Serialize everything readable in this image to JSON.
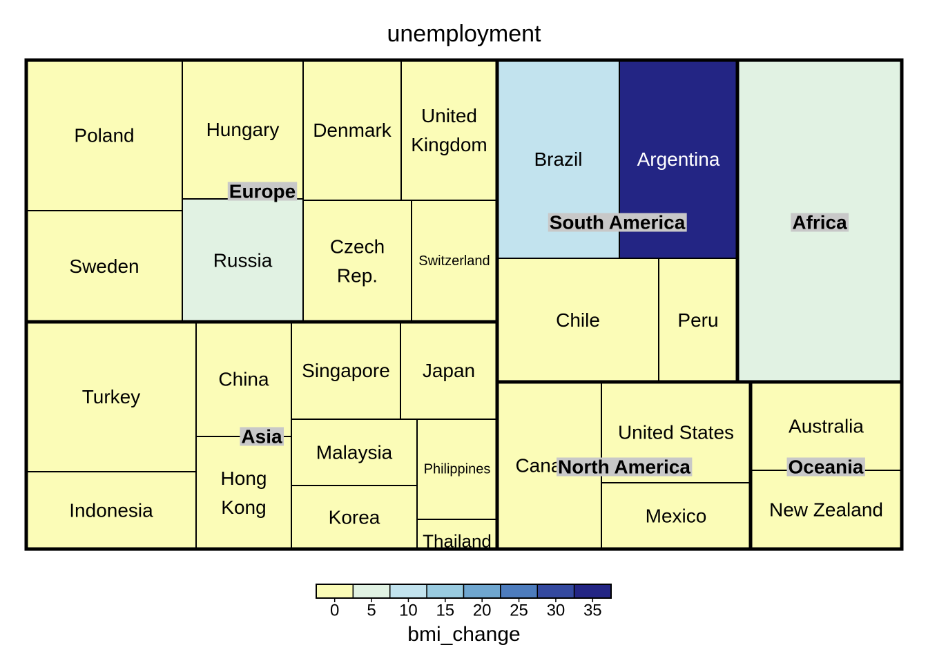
{
  "chart_data": {
    "type": "treemap",
    "title": "unemployment",
    "value_label": "bmi_change",
    "color_scale": {
      "breaks": [
        0,
        5,
        10,
        15,
        20,
        25,
        30,
        35
      ],
      "colors": [
        "#fbfcb7",
        "#e1f2e3",
        "#c2e3ee",
        "#99cbe0",
        "#6fa6cf",
        "#4d7cbd",
        "#34499f",
        "#232584"
      ]
    },
    "groups": [
      {
        "name": "Europe",
        "countries": [
          {
            "name": "Poland",
            "label_lines": [
              "Poland"
            ],
            "value": 3
          },
          {
            "name": "Sweden",
            "label_lines": [
              "Sweden"
            ],
            "value": 4
          },
          {
            "name": "Hungary",
            "label_lines": [
              "Hungary"
            ],
            "value": 3
          },
          {
            "name": "Russia",
            "label_lines": [
              "Russia"
            ],
            "value": 7
          },
          {
            "name": "Denmark",
            "label_lines": [
              "Denmark"
            ],
            "value": 0
          },
          {
            "name": "United Kingdom",
            "label_lines": [
              "United",
              "Kingdom"
            ],
            "value": 2
          },
          {
            "name": "Czech Rep.",
            "label_lines": [
              "Czech",
              "Rep."
            ],
            "value": 2
          },
          {
            "name": "Switzerland",
            "label_lines": [
              "Switzerland"
            ],
            "value": 0
          }
        ]
      },
      {
        "name": "Asia",
        "countries": [
          {
            "name": "Turkey",
            "label_lines": [
              "Turkey"
            ],
            "value": 1
          },
          {
            "name": "Indonesia",
            "label_lines": [
              "Indonesia"
            ],
            "value": 4
          },
          {
            "name": "China",
            "label_lines": [
              "China"
            ],
            "value": 4
          },
          {
            "name": "Hong Kong",
            "label_lines": [
              "Hong",
              "Kong"
            ],
            "value": 2
          },
          {
            "name": "Singapore",
            "label_lines": [
              "Singapore"
            ],
            "value": 3
          },
          {
            "name": "Japan",
            "label_lines": [
              "Japan"
            ],
            "value": 2
          },
          {
            "name": "Malaysia",
            "label_lines": [
              "Malaysia"
            ],
            "value": 3
          },
          {
            "name": "Philippines",
            "label_lines": [
              "Philippines"
            ],
            "value": 4
          },
          {
            "name": "Korea",
            "label_lines": [
              "Korea"
            ],
            "value": 2
          },
          {
            "name": "Thailand",
            "label_lines": [
              "Thailand"
            ],
            "value": 4
          }
        ]
      },
      {
        "name": "South America",
        "countries": [
          {
            "name": "Brazil",
            "label_lines": [
              "Brazil"
            ],
            "value": 10
          },
          {
            "name": "Argentina",
            "label_lines": [
              "Argentina"
            ],
            "value": 36
          },
          {
            "name": "Chile",
            "label_lines": [
              "Chile"
            ],
            "value": 4
          },
          {
            "name": "Peru",
            "label_lines": [
              "Peru"
            ],
            "value": 1
          }
        ]
      },
      {
        "name": "Africa",
        "countries": [
          {
            "name": "Africa",
            "label_lines": [],
            "value": 6
          }
        ]
      },
      {
        "name": "North America",
        "countries": [
          {
            "name": "Canada",
            "label_lines": [
              "Canada"
            ],
            "value": 3
          },
          {
            "name": "United States",
            "label_lines": [
              "United States"
            ],
            "value": 3
          },
          {
            "name": "Mexico",
            "label_lines": [
              "Mexico"
            ],
            "value": 4
          }
        ]
      },
      {
        "name": "Oceania",
        "countries": [
          {
            "name": "Australia",
            "label_lines": [
              "Australia"
            ],
            "value": 3
          },
          {
            "name": "New Zealand",
            "label_lines": [
              "New Zealand"
            ],
            "value": 2
          }
        ]
      }
    ]
  }
}
